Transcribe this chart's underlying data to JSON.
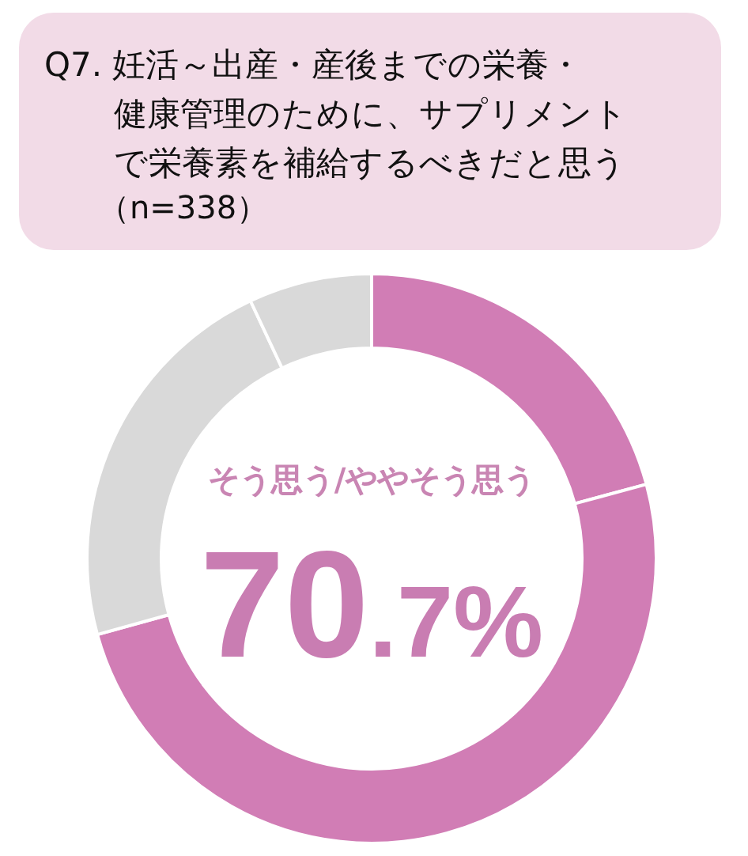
{
  "chart_data": {
    "type": "donut",
    "title": "Q7. 妊活～出産・産後までの栄養・健康管理のために、サプリメントで栄養素を補給するべきだと思う",
    "subtitle": "（n=338）",
    "categories": [
      null,
      null,
      null,
      null
    ],
    "values": [
      20.8,
      49.9,
      22.3,
      7.0
    ],
    "colors": [
      "#d17db5",
      "#d17db5",
      "#d9d9d9",
      "#d9d9d9"
    ],
    "annotations": [
      "そう思う/ややそう思う",
      "70.7%"
    ]
  }
}
